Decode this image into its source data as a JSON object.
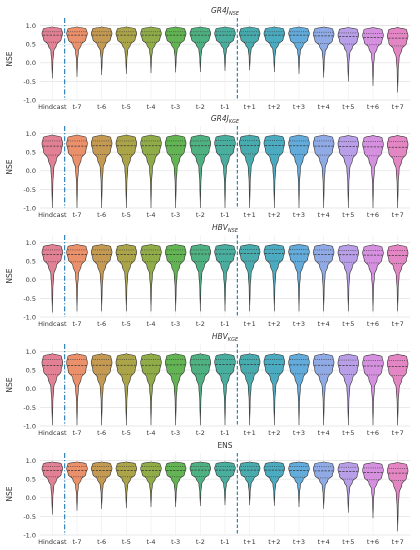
{
  "chart_data": [
    {
      "type": "violin",
      "title_main": "GR4J",
      "title_sub": "NSE",
      "ylabel": "NSE",
      "ylim": [
        -1.0,
        1.2
      ],
      "yticks": [
        "1.0",
        "0.5",
        "0.0",
        "-0.5",
        "-1.0"
      ],
      "categories": [
        "Hindcast",
        "t-7",
        "t-6",
        "t-5",
        "t-4",
        "t-3",
        "t-2",
        "t-1",
        "t+1",
        "t+2",
        "t+3",
        "t+4",
        "t+5",
        "t+6",
        "t+7"
      ],
      "medians": [
        0.74,
        0.74,
        0.74,
        0.74,
        0.74,
        0.74,
        0.74,
        0.74,
        0.74,
        0.74,
        0.74,
        0.72,
        0.7,
        0.68,
        0.66
      ],
      "q1": [
        0.55,
        0.55,
        0.55,
        0.55,
        0.55,
        0.55,
        0.55,
        0.55,
        0.55,
        0.55,
        0.54,
        0.52,
        0.5,
        0.48,
        0.45
      ],
      "q3": [
        0.83,
        0.83,
        0.83,
        0.83,
        0.83,
        0.83,
        0.83,
        0.83,
        0.83,
        0.83,
        0.83,
        0.82,
        0.8,
        0.79,
        0.78
      ],
      "max": [
        0.97,
        0.97,
        0.97,
        0.97,
        0.97,
        0.97,
        0.97,
        0.97,
        0.97,
        0.97,
        0.97,
        0.97,
        0.96,
        0.96,
        0.96
      ],
      "min": [
        -0.42,
        -0.38,
        -0.33,
        -0.3,
        -0.28,
        -0.26,
        -0.25,
        -0.22,
        -0.2,
        -0.25,
        -0.3,
        -0.4,
        -0.5,
        -0.62,
        -0.8
      ]
    },
    {
      "type": "violin",
      "title_main": "GR4J",
      "title_sub": "KGE",
      "ylabel": "NSE",
      "ylim": [
        -1.0,
        1.2
      ],
      "yticks": [
        "1.0",
        "0.5",
        "0.0",
        "-0.5",
        "-1.0"
      ],
      "categories": [
        "Hindcast",
        "t-7",
        "t-6",
        "t-5",
        "t-4",
        "t-3",
        "t-2",
        "t-1",
        "t+1",
        "t+2",
        "t+3",
        "t+4",
        "t+5",
        "t+6",
        "t+7"
      ],
      "medians": [
        0.66,
        0.66,
        0.67,
        0.67,
        0.67,
        0.67,
        0.67,
        0.68,
        0.68,
        0.68,
        0.67,
        0.66,
        0.65,
        0.64,
        0.63
      ],
      "q1": [
        0.42,
        0.42,
        0.43,
        0.43,
        0.43,
        0.43,
        0.43,
        0.44,
        0.45,
        0.44,
        0.43,
        0.42,
        0.41,
        0.4,
        0.38
      ],
      "q3": [
        0.8,
        0.8,
        0.8,
        0.8,
        0.8,
        0.8,
        0.8,
        0.81,
        0.81,
        0.81,
        0.8,
        0.8,
        0.79,
        0.78,
        0.78
      ],
      "max": [
        0.97,
        0.97,
        0.97,
        0.97,
        0.97,
        0.97,
        0.97,
        0.97,
        0.97,
        0.97,
        0.97,
        0.97,
        0.96,
        0.96,
        0.96
      ],
      "min": [
        -1.0,
        -1.0,
        -1.0,
        -1.0,
        -1.0,
        -1.0,
        -1.0,
        -1.0,
        -1.0,
        -1.0,
        -1.0,
        -1.0,
        -1.0,
        -1.0,
        -1.0
      ]
    },
    {
      "type": "violin",
      "title_main": "HBV",
      "title_sub": "NSE",
      "ylabel": "NSE",
      "ylim": [
        -1.0,
        1.2
      ],
      "yticks": [
        "1.0",
        "0.5",
        "0.0",
        "-0.5",
        "-1.0"
      ],
      "categories": [
        "Hindcast",
        "t-7",
        "t-6",
        "t-5",
        "t-4",
        "t-3",
        "t-2",
        "t-1",
        "t+1",
        "t+2",
        "t+3",
        "t+4",
        "t+5",
        "t+6",
        "t+7"
      ],
      "medians": [
        0.68,
        0.68,
        0.68,
        0.68,
        0.68,
        0.68,
        0.69,
        0.69,
        0.7,
        0.7,
        0.69,
        0.68,
        0.67,
        0.66,
        0.65
      ],
      "q1": [
        0.48,
        0.48,
        0.48,
        0.48,
        0.48,
        0.48,
        0.49,
        0.49,
        0.5,
        0.5,
        0.49,
        0.48,
        0.47,
        0.45,
        0.44
      ],
      "q3": [
        0.8,
        0.8,
        0.8,
        0.8,
        0.8,
        0.8,
        0.8,
        0.81,
        0.81,
        0.81,
        0.81,
        0.8,
        0.79,
        0.78,
        0.78
      ],
      "max": [
        0.96,
        0.96,
        0.96,
        0.96,
        0.96,
        0.96,
        0.96,
        0.96,
        0.96,
        0.96,
        0.96,
        0.96,
        0.95,
        0.95,
        0.95
      ],
      "min": [
        -0.88,
        -0.85,
        -0.85,
        -0.85,
        -0.85,
        -0.85,
        -0.85,
        -0.85,
        -0.85,
        -0.85,
        -0.85,
        -0.85,
        -0.85,
        -0.85,
        -0.85
      ]
    },
    {
      "type": "violin",
      "title_main": "HBV",
      "title_sub": "KGE",
      "ylabel": "NSE",
      "ylim": [
        -1.0,
        1.2
      ],
      "yticks": [
        "1.0",
        "0.5",
        "0.0",
        "-0.5",
        "-1.0"
      ],
      "categories": [
        "Hindcast",
        "t-7",
        "t-6",
        "t-5",
        "t-4",
        "t-3",
        "t-2",
        "t-1",
        "t+1",
        "t+2",
        "t+3",
        "t+4",
        "t+5",
        "t+6",
        "t+7"
      ],
      "medians": [
        0.62,
        0.62,
        0.63,
        0.63,
        0.63,
        0.64,
        0.64,
        0.65,
        0.65,
        0.65,
        0.64,
        0.63,
        0.62,
        0.61,
        0.6
      ],
      "q1": [
        0.38,
        0.38,
        0.39,
        0.39,
        0.4,
        0.4,
        0.4,
        0.41,
        0.42,
        0.41,
        0.4,
        0.39,
        0.38,
        0.37,
        0.35
      ],
      "q3": [
        0.78,
        0.78,
        0.78,
        0.78,
        0.78,
        0.78,
        0.78,
        0.79,
        0.79,
        0.79,
        0.78,
        0.78,
        0.77,
        0.76,
        0.76
      ],
      "max": [
        0.95,
        0.95,
        0.95,
        0.95,
        0.95,
        0.95,
        0.95,
        0.95,
        0.95,
        0.95,
        0.95,
        0.95,
        0.94,
        0.94,
        0.94
      ],
      "min": [
        -0.98,
        -0.98,
        -0.98,
        -0.98,
        -0.98,
        -0.98,
        -0.98,
        -0.98,
        -0.98,
        -0.98,
        -0.98,
        -0.98,
        -0.98,
        -0.98,
        -0.98
      ]
    },
    {
      "type": "violin",
      "title_main": "ENS",
      "title_sub": "",
      "ylabel": "NSE",
      "ylim": [
        -1.0,
        1.2
      ],
      "yticks": [
        "1.0",
        "0.5",
        "0.0",
        "-0.5",
        "-1.0"
      ],
      "categories": [
        "Hindcast",
        "t-7",
        "t-6",
        "t-5",
        "t-4",
        "t-3",
        "t-2",
        "t-1",
        "t+1",
        "t+2",
        "t+3",
        "t+4",
        "t+5",
        "t+6",
        "t+7"
      ],
      "medians": [
        0.73,
        0.73,
        0.73,
        0.73,
        0.73,
        0.73,
        0.74,
        0.74,
        0.74,
        0.74,
        0.73,
        0.72,
        0.7,
        0.68,
        0.66
      ],
      "q1": [
        0.56,
        0.56,
        0.56,
        0.56,
        0.56,
        0.56,
        0.57,
        0.57,
        0.57,
        0.56,
        0.55,
        0.53,
        0.5,
        0.48,
        0.46
      ],
      "q3": [
        0.84,
        0.84,
        0.84,
        0.84,
        0.84,
        0.84,
        0.84,
        0.84,
        0.84,
        0.84,
        0.84,
        0.83,
        0.82,
        0.8,
        0.79
      ],
      "max": [
        0.97,
        0.97,
        0.97,
        0.97,
        0.97,
        0.97,
        0.97,
        0.97,
        0.97,
        0.97,
        0.97,
        0.97,
        0.96,
        0.96,
        0.96
      ],
      "min": [
        -0.45,
        -0.35,
        -0.3,
        -0.28,
        -0.25,
        -0.25,
        -0.22,
        -0.2,
        -0.2,
        -0.22,
        -0.25,
        -0.3,
        -0.4,
        -0.55,
        -0.9
      ]
    }
  ],
  "colors": [
    "#e07a8f",
    "#e98a63",
    "#c1954a",
    "#a69f3f",
    "#8aa83e",
    "#5bb04a",
    "#45ad7a",
    "#3faa99",
    "#3ea8ab",
    "#41a7bd",
    "#5aa6d8",
    "#8aa5e5",
    "#b49ae6",
    "#d48ade",
    "#e27fc0"
  ],
  "grid": true,
  "separator_color": "#1f77b4"
}
